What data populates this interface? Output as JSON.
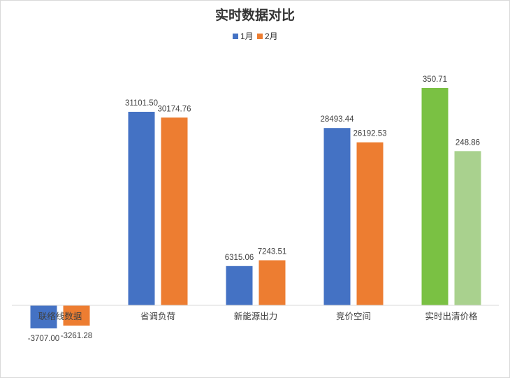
{
  "chart_data": {
    "type": "bar",
    "title": "实时数据对比",
    "categories": [
      "联络线数据",
      "省调负荷",
      "新能源出力",
      "竞价空间",
      "实时出清价格"
    ],
    "series": [
      {
        "name": "1月",
        "values": [
          -3707.0,
          31101.5,
          6315.06,
          28493.44,
          350.71
        ],
        "value_labels": [
          "-3707.00",
          "31101.50",
          "6315.06",
          "28493.44",
          "350.71"
        ],
        "color": "#4472C4"
      },
      {
        "name": "2月",
        "values": [
          -3261.28,
          30174.76,
          7243.51,
          26192.53,
          248.86
        ],
        "value_labels": [
          "-3261.28",
          "30174.76",
          "7243.51",
          "26192.53",
          "248.86"
        ],
        "color": "#ED7D31"
      }
    ],
    "highlight_colors": {
      "1月": "#7AC143",
      "2月": "#A9D18E"
    },
    "legend_position": "top",
    "grid": false,
    "xlabel": "",
    "ylabel": ""
  }
}
